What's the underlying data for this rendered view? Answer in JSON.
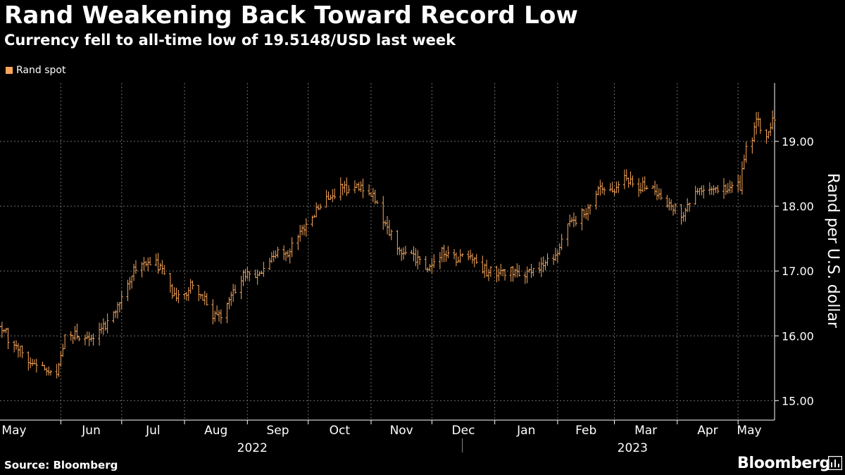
{
  "title": "Rand Weakening Back Toward Record Low",
  "subtitle": "Currency fell to all-time low of 19.5148/USD last week",
  "source": "Source: Bloomberg",
  "brand": "Bloomberg",
  "colors": {
    "background": "#000000",
    "series": "#f8a65a",
    "grid": "#6e6e6e",
    "text": "#ffffff"
  },
  "chart_data": {
    "type": "ohlc",
    "series": [
      {
        "name": "Rand spot",
        "color": "#f8a65a"
      }
    ],
    "ylabel": "Rand per U.S. dollar",
    "y_axis_side": "right",
    "ylim": [
      14.7,
      19.9
    ],
    "yticks": [
      15,
      16,
      17,
      18,
      19
    ],
    "ytick_labels": [
      "15.00",
      "16.00",
      "17.00",
      "18.00",
      "19.00"
    ],
    "x_start": "2022-05-02",
    "x_end": "2023-05-19",
    "x_month_labels": [
      {
        "label": "May",
        "date": "2022-05-01"
      },
      {
        "label": "Jun",
        "date": "2022-06-01"
      },
      {
        "label": "Jul",
        "date": "2022-07-01"
      },
      {
        "label": "Aug",
        "date": "2022-08-01"
      },
      {
        "label": "Sep",
        "date": "2022-09-01"
      },
      {
        "label": "Oct",
        "date": "2022-10-01"
      },
      {
        "label": "Nov",
        "date": "2022-11-01"
      },
      {
        "label": "Dec",
        "date": "2022-12-01"
      },
      {
        "label": "Jan",
        "date": "2023-01-01"
      },
      {
        "label": "Feb",
        "date": "2023-02-01"
      },
      {
        "label": "Mar",
        "date": "2023-03-01"
      },
      {
        "label": "Apr",
        "date": "2023-04-01"
      },
      {
        "label": "May",
        "date": "2023-05-01"
      }
    ],
    "x_year_labels": [
      {
        "label": "2022"
      },
      {
        "label": "2023"
      }
    ],
    "grid": true,
    "legend": "top-left",
    "anchors": [
      [
        "2022-05-02",
        16.15
      ],
      [
        "2022-05-09",
        15.85
      ],
      [
        "2022-05-16",
        15.6
      ],
      [
        "2022-05-23",
        15.55
      ],
      [
        "2022-05-30",
        15.35
      ],
      [
        "2022-06-03",
        16.0
      ],
      [
        "2022-06-10",
        16.0
      ],
      [
        "2022-06-17",
        15.95
      ],
      [
        "2022-06-24",
        16.25
      ],
      [
        "2022-07-01",
        16.6
      ],
      [
        "2022-07-08",
        17.05
      ],
      [
        "2022-07-14",
        17.15
      ],
      [
        "2022-07-21",
        17.05
      ],
      [
        "2022-07-28",
        16.55
      ],
      [
        "2022-08-04",
        16.8
      ],
      [
        "2022-08-11",
        16.55
      ],
      [
        "2022-08-17",
        16.25
      ],
      [
        "2022-08-24",
        16.6
      ],
      [
        "2022-08-31",
        17.0
      ],
      [
        "2022-09-07",
        16.9
      ],
      [
        "2022-09-14",
        17.3
      ],
      [
        "2022-09-21",
        17.3
      ],
      [
        "2022-09-28",
        17.6
      ],
      [
        "2022-10-05",
        17.95
      ],
      [
        "2022-10-12",
        18.2
      ],
      [
        "2022-10-18",
        18.25
      ],
      [
        "2022-10-25",
        18.3
      ],
      [
        "2022-11-01",
        18.2
      ],
      [
        "2022-11-08",
        17.7
      ],
      [
        "2022-11-15",
        17.3
      ],
      [
        "2022-11-22",
        17.2
      ],
      [
        "2022-11-29",
        17.0
      ],
      [
        "2022-12-06",
        17.3
      ],
      [
        "2022-12-13",
        17.2
      ],
      [
        "2022-12-20",
        17.3
      ],
      [
        "2022-12-27",
        17.0
      ],
      [
        "2023-01-03",
        17.0
      ],
      [
        "2023-01-10",
        17.0
      ],
      [
        "2023-01-17",
        16.95
      ],
      [
        "2023-01-24",
        17.1
      ],
      [
        "2023-01-31",
        17.25
      ],
      [
        "2023-02-07",
        17.75
      ],
      [
        "2023-02-14",
        17.9
      ],
      [
        "2023-02-21",
        18.3
      ],
      [
        "2023-02-28",
        18.25
      ],
      [
        "2023-03-07",
        18.45
      ],
      [
        "2023-03-14",
        18.3
      ],
      [
        "2023-03-21",
        18.25
      ],
      [
        "2023-03-28",
        18.0
      ],
      [
        "2023-04-04",
        17.9
      ],
      [
        "2023-04-11",
        18.3
      ],
      [
        "2023-04-18",
        18.2
      ],
      [
        "2023-04-25",
        18.3
      ],
      [
        "2023-05-02",
        18.3
      ],
      [
        "2023-05-05",
        18.85
      ],
      [
        "2023-05-10",
        19.3
      ],
      [
        "2023-05-15",
        19.1
      ],
      [
        "2023-05-19",
        19.35
      ]
    ]
  }
}
